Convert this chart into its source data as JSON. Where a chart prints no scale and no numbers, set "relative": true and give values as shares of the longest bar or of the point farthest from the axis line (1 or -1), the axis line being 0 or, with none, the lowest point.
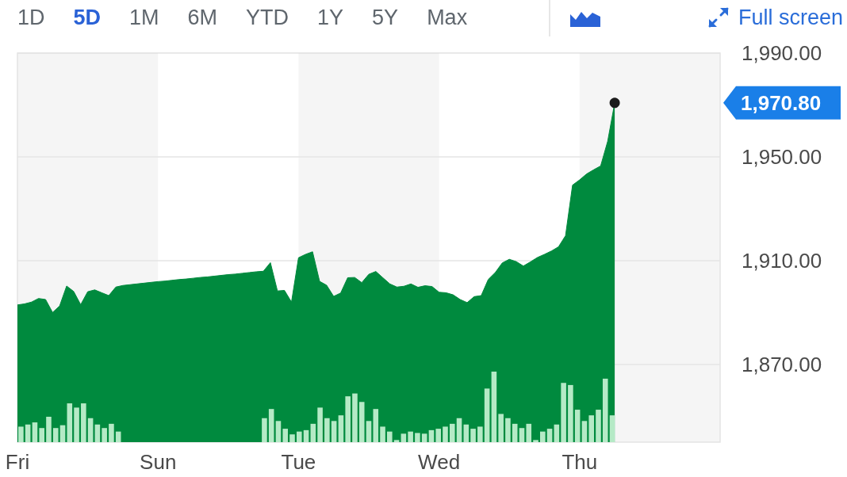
{
  "chart_data": [
    {
      "type": "area",
      "color": "#008a3e",
      "ylim": [
        1840,
        1990
      ],
      "categories": [
        "Fri",
        null,
        null,
        null,
        null,
        null,
        null,
        null,
        null,
        null,
        null,
        null,
        null,
        null,
        null,
        null,
        null,
        null,
        null,
        null,
        "Sun",
        null,
        null,
        null,
        null,
        null,
        null,
        null,
        null,
        null,
        null,
        null,
        null,
        null,
        null,
        null,
        null,
        null,
        null,
        null,
        "Tue",
        null,
        null,
        null,
        null,
        null,
        null,
        null,
        null,
        null,
        null,
        null,
        null,
        null,
        null,
        null,
        null,
        null,
        null,
        null,
        "Wed",
        null,
        null,
        null,
        null,
        null,
        null,
        null,
        null,
        null,
        null,
        null,
        null,
        null,
        null,
        null,
        null,
        null,
        null,
        null,
        "Thu",
        null,
        null,
        null,
        null,
        null,
        null,
        null,
        null,
        null,
        null,
        null,
        null,
        null,
        null,
        null,
        null,
        null,
        null,
        null,
        null
      ],
      "values": [
        1892.9,
        1893.3,
        1894,
        1895.4,
        1895,
        1890,
        1892.5,
        1900.2,
        1898.1,
        1893,
        1898,
        1898.7,
        1897.6,
        1896.5,
        1899.8,
        1900.4,
        1900.7,
        1901,
        1901.3,
        1901.6,
        1901.9,
        1902.1,
        1902.4,
        1902.7,
        1902.9,
        1903.2,
        1903.5,
        1903.7,
        1904,
        1904.3,
        1904.6,
        1904.8,
        1905.1,
        1905.4,
        1905.7,
        1905.9,
        1909.2,
        1898.3,
        1898.5,
        1894,
        1911.1,
        1912.4,
        1913.4,
        1902,
        1900.5,
        1896.2,
        1897.5,
        1903.4,
        1903.5,
        1901.5,
        1904.7,
        1905.8,
        1903.4,
        1901,
        1899.8,
        1900.1,
        1901,
        1899.7,
        1900.3,
        1900,
        1897.8,
        1897.6,
        1896.8,
        1895,
        1893.8,
        1896.1,
        1896.5,
        1902.7,
        1905.4,
        1909.1,
        1910.5,
        1909.6,
        1907.9,
        1909.5,
        1911.2,
        1912.4,
        1913.7,
        1915.3,
        1919.6,
        1939.1,
        1941.1,
        1943.4,
        1945,
        1946.5,
        1956,
        1970.8,
        null,
        null,
        null,
        null,
        null,
        null,
        null,
        null,
        null,
        null,
        null,
        null,
        null,
        null,
        null
      ],
      "yticks": [
        {
          "value": 1870,
          "label": "1,870.00"
        },
        {
          "value": 1910,
          "label": "1,910.00"
        },
        {
          "value": 1950,
          "label": "1,950.00"
        },
        {
          "value": 1990,
          "label": "1,990.00"
        }
      ],
      "grid": "y",
      "bands": [
        {
          "axis": "x",
          "from": "Sun",
          "to": "Tue",
          "color": "#ffffff"
        },
        {
          "axis": "x",
          "from": "Wed",
          "to": "Thu",
          "color": "#ffffff"
        }
      ],
      "annotations": [
        "1D",
        "5D",
        "1M",
        "6M",
        "YTD",
        "1Y",
        "5Y",
        "Max",
        "Full screen",
        "1,970.80"
      ]
    },
    {
      "type": "bar",
      "relative": true,
      "color": "#b5eac6",
      "categories": [
        null,
        null,
        null,
        null,
        null,
        null,
        null,
        null,
        null,
        null,
        null,
        null,
        null,
        null,
        null,
        null,
        null,
        null,
        null,
        null,
        null,
        null,
        null,
        null,
        null,
        null,
        null,
        null,
        null,
        null,
        null,
        null,
        null,
        null,
        null,
        null,
        null,
        null,
        null,
        null,
        null,
        null,
        null,
        null,
        null,
        null,
        null,
        null,
        null,
        null,
        null,
        null,
        null,
        null,
        null,
        null,
        null,
        null,
        null,
        null,
        null,
        null,
        null,
        null,
        null,
        null,
        null,
        null,
        null,
        null,
        null,
        null,
        null,
        null,
        null,
        null,
        null,
        null,
        null,
        null,
        null,
        null,
        null,
        null,
        null,
        null,
        null,
        null,
        null,
        null,
        null,
        null,
        null,
        null,
        null,
        null,
        null,
        null,
        null,
        null,
        null
      ],
      "values": [
        0.22,
        0.25,
        0.28,
        0.2,
        0.36,
        0.2,
        0.24,
        0.55,
        0.49,
        0.55,
        0.34,
        0.25,
        0.2,
        0.26,
        0.15,
        null,
        null,
        null,
        null,
        null,
        null,
        null,
        null,
        null,
        null,
        null,
        null,
        null,
        null,
        null,
        null,
        null,
        null,
        null,
        null,
        0.34,
        0.47,
        0.3,
        0.19,
        0.11,
        0.15,
        0.17,
        0.26,
        0.49,
        0.34,
        0.3,
        0.38,
        0.65,
        0.69,
        0.57,
        0.3,
        0.47,
        0.22,
        0.15,
        0.03,
        0.12,
        0.15,
        0.13,
        0.12,
        0.17,
        0.19,
        0.22,
        0.26,
        0.34,
        0.25,
        0.19,
        0.22,
        0.76,
        1,
        0.4,
        0.34,
        0.26,
        0.2,
        0.26,
        0.03,
        0.15,
        0.19,
        0.25,
        0.84,
        0.81,
        0.46,
        0.3,
        0.38,
        0.46,
        0.9,
        0.38,
        null,
        null,
        null,
        null,
        null,
        null,
        null,
        null,
        null,
        null,
        null,
        null,
        null,
        null,
        null
      ]
    }
  ]
}
